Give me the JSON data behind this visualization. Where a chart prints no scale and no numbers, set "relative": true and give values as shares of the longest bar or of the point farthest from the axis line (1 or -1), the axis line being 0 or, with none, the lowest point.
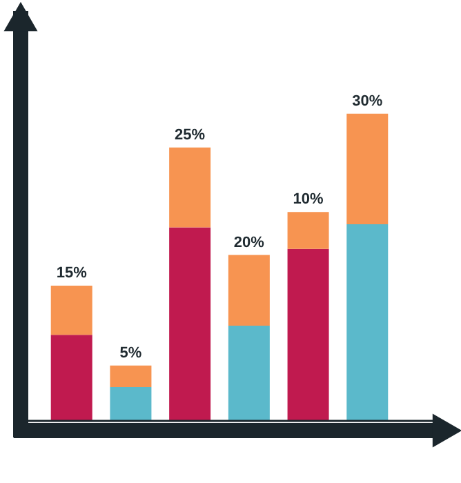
{
  "chart_data": {
    "type": "bar",
    "stacked": true,
    "relative": true,
    "categories": [
      null,
      null,
      null,
      null,
      null,
      null
    ],
    "series": [
      {
        "colors": [
          "#c01a4f",
          "#5bb9cb",
          "#c01a4f",
          "#5bb9cb",
          "#c01a4f",
          "#5bb9cb"
        ],
        "values": [
          0.28,
          0.11,
          0.63,
          0.31,
          0.56,
          0.64
        ]
      },
      {
        "color": "#f79451",
        "values": [
          0.16,
          0.07,
          0.26,
          0.23,
          0.12,
          0.36
        ]
      }
    ],
    "annotations": [
      "15%",
      "5%",
      "25%",
      "20%",
      "10%",
      "30%"
    ]
  }
}
